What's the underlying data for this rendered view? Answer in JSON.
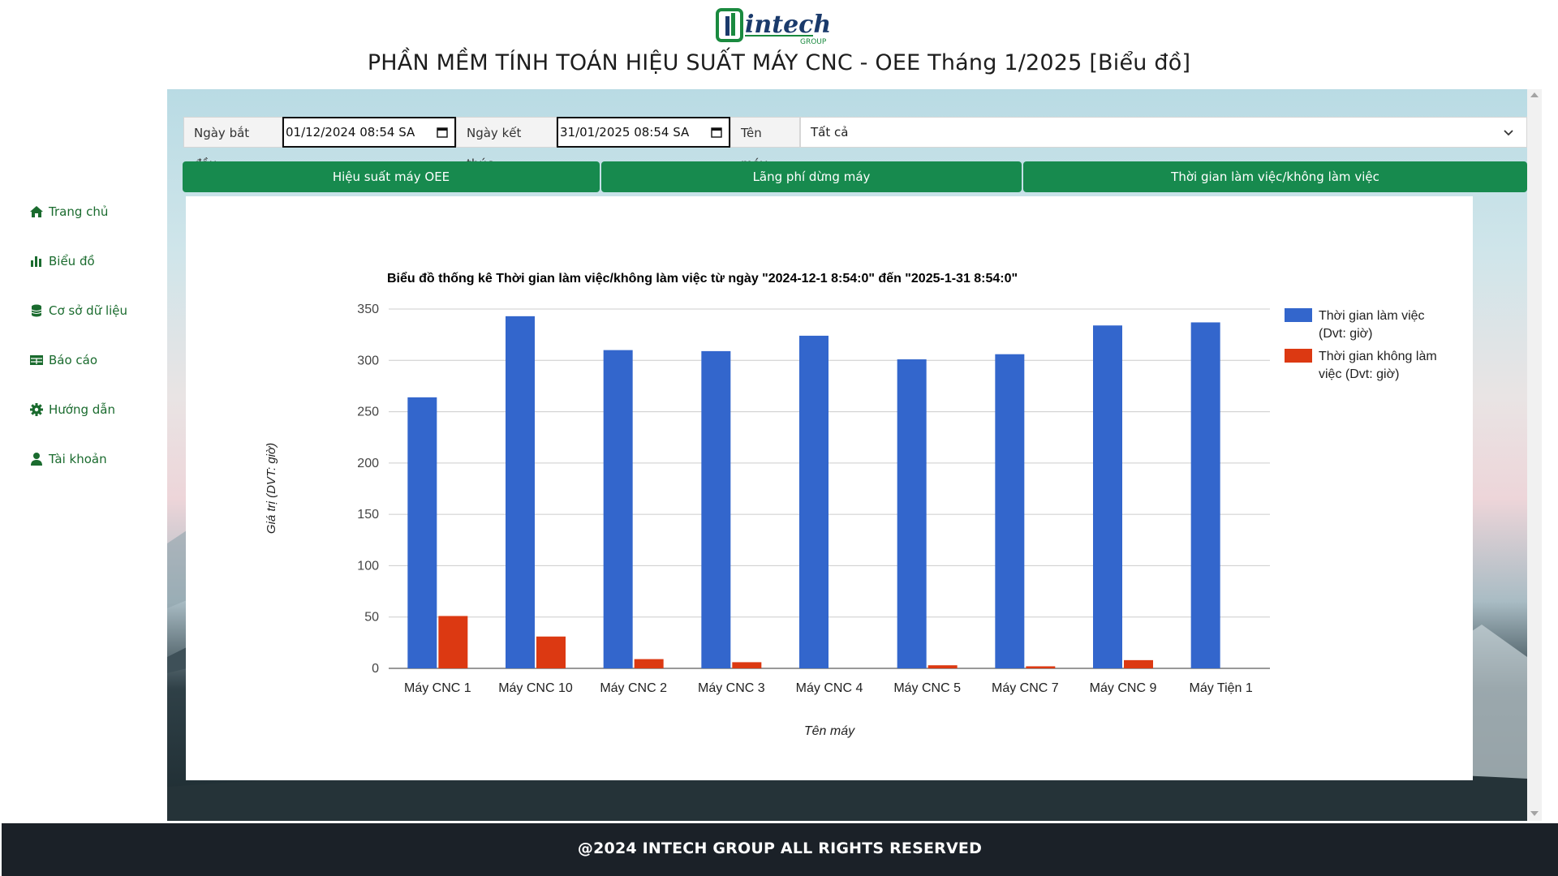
{
  "header": {
    "logo_text": "intech",
    "logo_subtext": "GROUP",
    "title": "PHẦN MỀM TÍNH TOÁN HIỆU SUẤT MÁY CNC - OEE Tháng 1/2025 [Biểu đồ]"
  },
  "sidebar": {
    "items": [
      {
        "label": "Trang chủ",
        "icon": "home-icon"
      },
      {
        "label": "Biểu đồ",
        "icon": "bar-chart-icon"
      },
      {
        "label": "Cơ sở dữ liệu",
        "icon": "database-icon"
      },
      {
        "label": "Báo cáo",
        "icon": "table-icon"
      },
      {
        "label": "Hướng dẫn",
        "icon": "gear-icon"
      },
      {
        "label": "Tài khoản",
        "icon": "user-icon"
      }
    ]
  },
  "filters": {
    "start_label": "Ngày bắt đầu",
    "start_value": "01/12/2024 08:54 SA",
    "end_label": "Ngày kết thúc",
    "end_value": "31/01/2025 08:54 SA",
    "machine_label": "Tên máy",
    "machine_value": "Tất cả"
  },
  "tabs": [
    {
      "label": "Hiệu suất máy OEE"
    },
    {
      "label": "Lãng phí dừng máy"
    },
    {
      "label": "Thời gian làm việc/không làm việc"
    }
  ],
  "chart_data": {
    "type": "bar",
    "title": "Biểu đồ thống kê Thời gian làm việc/không làm việc từ ngày \"2024-12-1 8:54:0\" đến \"2025-1-31 8:54:0\"",
    "xlabel": "Tên máy",
    "ylabel": "Giá trị (DVT: giờ)",
    "ylim": [
      0,
      350
    ],
    "yticks": [
      0,
      50,
      100,
      150,
      200,
      250,
      300,
      350
    ],
    "grid": true,
    "legend_position": "right",
    "categories": [
      "Máy CNC 1",
      "Máy CNC 10",
      "Máy CNC 2",
      "Máy CNC 3",
      "Máy CNC 4",
      "Máy CNC 5",
      "Máy CNC 7",
      "Máy CNC 9",
      "Máy Tiện 1"
    ],
    "series": [
      {
        "name": "Thời gian làm việc (Dvt: giờ)",
        "legend_lines": [
          "Thời gian làm việc",
          "(Dvt: giờ)"
        ],
        "color": "#3366cc",
        "values": [
          264,
          343,
          310,
          309,
          324,
          301,
          306,
          334,
          337
        ]
      },
      {
        "name": "Thời gian không làm việc (Dvt: giờ)",
        "legend_lines": [
          "Thời gian không làm",
          "việc (Dvt: giờ)"
        ],
        "color": "#dc3912",
        "values": [
          51,
          31,
          9,
          6,
          0,
          3,
          2,
          8,
          0
        ]
      }
    ]
  },
  "footer": {
    "text": "@2024 INTECH GROUP ALL RIGHTS RESERVED"
  },
  "colors": {
    "accent_green": "#178a4e",
    "nav_green": "#1a6b2e",
    "footer_bg": "#1b2128"
  }
}
